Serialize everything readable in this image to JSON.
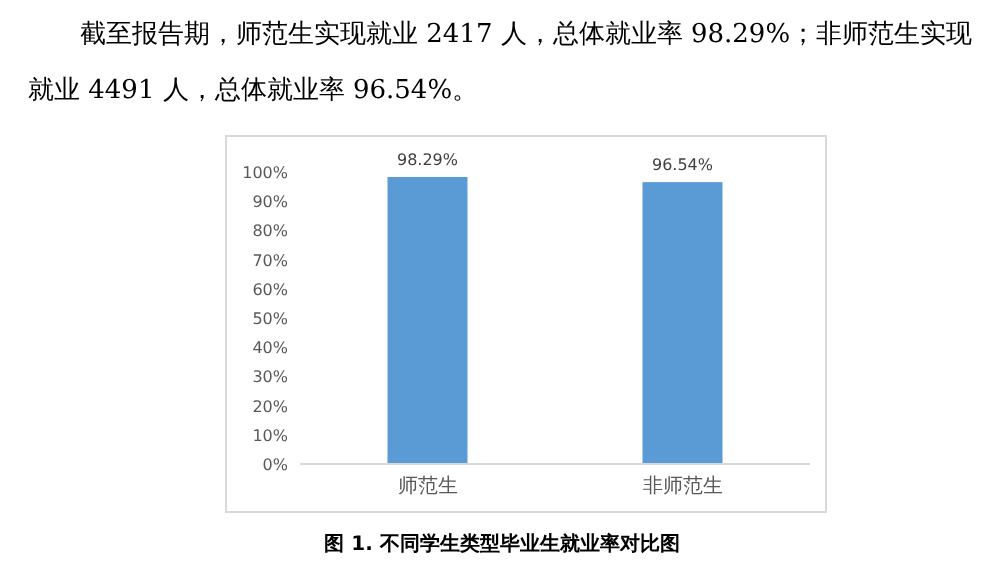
{
  "chart_data": {
    "type": "bar",
    "title": "图 1. 不同学生类型毕业生就业率对比图",
    "annotations": [
      "截至报告期，师范生实现就业 2417 人，总体就业率 98.29%；非师范生实现就业 4491 人，总体就业率 96.54%。"
    ],
    "categories": [
      "师范生",
      "非师范生"
    ],
    "values": [
      98.29,
      96.54
    ],
    "value_labels": [
      "98.29%",
      "96.54%"
    ],
    "color": "#5b9bd5",
    "ylim": [
      0,
      100
    ],
    "yticks": [
      {
        "value": 0,
        "label": "0%"
      },
      {
        "value": 10,
        "label": "10%"
      },
      {
        "value": 20,
        "label": "20%"
      },
      {
        "value": 30,
        "label": "30%"
      },
      {
        "value": 40,
        "label": "40%"
      },
      {
        "value": 50,
        "label": "50%"
      },
      {
        "value": 60,
        "label": "60%"
      },
      {
        "value": 70,
        "label": "70%"
      },
      {
        "value": 80,
        "label": "80%"
      },
      {
        "value": 90,
        "label": "90%"
      },
      {
        "value": 100,
        "label": "100%"
      }
    ]
  }
}
